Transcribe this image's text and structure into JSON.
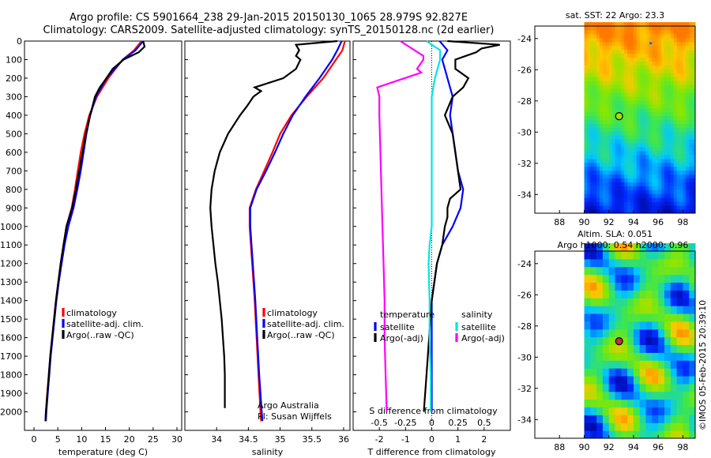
{
  "header": {
    "line1": "Argo profile: CS 5901664_238 29-Jan-2015 20150130_1065 28.979S 92.827E",
    "line2": "Climatology: CARS2009. Satellite-adjusted climatology: synTS_20150128.nc (2d earlier)"
  },
  "credits": {
    "org": "Argo Australia",
    "pi": "PI: Susan Wijffels",
    "stamp": "©IMOS 05-Feb-2015 20:39:10"
  },
  "colors": {
    "clim": "#ff0000",
    "sat": "#0000ff",
    "argo": "#000000",
    "sal_sat": "#00e5e5",
    "sal_argo": "#ff00ff"
  },
  "chart_data": [
    {
      "type": "line",
      "id": "temperature",
      "xlabel": "temperature (deg C)",
      "ylabel": "",
      "xlim": [
        -2,
        31
      ],
      "ylim": [
        2100,
        0
      ],
      "xticks": [
        0,
        5,
        10,
        15,
        20,
        25,
        30
      ],
      "yticks": [
        0,
        100,
        200,
        300,
        400,
        500,
        600,
        700,
        800,
        900,
        1000,
        1100,
        1200,
        1300,
        1400,
        1500,
        1600,
        1700,
        1800,
        1900,
        2000
      ],
      "legend": [
        "climatology",
        "satellite-adj. clim.",
        "Argo(..raw -QC)"
      ],
      "series": [
        {
          "name": "climatology",
          "color": "#ff0000",
          "depth": [
            0,
            50,
            100,
            200,
            300,
            400,
            500,
            600,
            700,
            800,
            900,
            1000,
            1100,
            1200,
            1300,
            1400,
            1500,
            1600,
            1700,
            1800,
            1900,
            2000,
            2050
          ],
          "values": [
            22.6,
            21,
            18.6,
            15.6,
            13.2,
            11.6,
            10.6,
            9.8,
            9.2,
            8.6,
            7.9,
            6.8,
            6.2,
            5.6,
            5.1,
            4.6,
            4.2,
            3.8,
            3.4,
            3.1,
            2.8,
            2.5,
            2.4
          ]
        },
        {
          "name": "satellite-adj. clim.",
          "color": "#0000ff",
          "depth": [
            0,
            50,
            100,
            200,
            300,
            400,
            500,
            600,
            700,
            800,
            900,
            1000,
            1100,
            1200,
            1300,
            1400,
            1500,
            1600,
            1700,
            1800,
            1900,
            2000,
            2050
          ],
          "values": [
            22.9,
            21.3,
            18.7,
            15.2,
            13.0,
            11.8,
            11.0,
            10.4,
            9.8,
            9.1,
            8.3,
            7.2,
            6.4,
            5.8,
            5.2,
            4.7,
            4.3,
            3.9,
            3.5,
            3.2,
            2.9,
            2.6,
            2.5
          ]
        },
        {
          "name": "Argo(..raw -QC)",
          "color": "#000000",
          "depth": [
            0,
            30,
            60,
            100,
            150,
            200,
            250,
            300,
            400,
            500,
            600,
            700,
            800,
            900,
            1000,
            1100,
            1200,
            1300,
            1400,
            1500,
            1600,
            1700,
            1800,
            1900,
            2000,
            2050
          ],
          "values": [
            22.9,
            23.2,
            22.0,
            18.8,
            16.5,
            15.2,
            13.8,
            12.8,
            11.8,
            10.9,
            10.2,
            9.5,
            8.8,
            8.0,
            6.8,
            6.2,
            5.6,
            5.1,
            4.6,
            4.2,
            3.8,
            3.4,
            3.1,
            2.8,
            2.5,
            2.4
          ]
        }
      ]
    },
    {
      "type": "line",
      "id": "salinity",
      "xlabel": "salinity",
      "xlim": [
        33.5,
        36.1
      ],
      "ylim": [
        2100,
        0
      ],
      "xticks": [
        34,
        34.5,
        35,
        35.5,
        36
      ],
      "legend": [
        "climatology",
        "satellite-adj. clim.",
        "Argo(..raw -QC)"
      ],
      "series": [
        {
          "name": "climatology",
          "color": "#ff0000",
          "depth": [
            0,
            50,
            100,
            200,
            300,
            400,
            500,
            600,
            700,
            800,
            900,
            1000,
            1200,
            1400,
            1600,
            1800,
            2000,
            2050
          ],
          "values": [
            36.02,
            35.98,
            35.88,
            35.68,
            35.42,
            35.18,
            35.0,
            34.88,
            34.75,
            34.62,
            34.52,
            34.52,
            34.56,
            34.6,
            34.63,
            34.66,
            34.69,
            34.7
          ]
        },
        {
          "name": "satellite-adj. clim.",
          "color": "#0000ff",
          "depth": [
            0,
            50,
            100,
            200,
            300,
            400,
            500,
            600,
            700,
            800,
            900,
            1000,
            1200,
            1400,
            1600,
            1800,
            2000,
            2050
          ],
          "values": [
            35.97,
            35.9,
            35.82,
            35.62,
            35.4,
            35.2,
            35.05,
            34.92,
            34.78,
            34.63,
            34.53,
            34.53,
            34.57,
            34.61,
            34.64,
            34.67,
            34.71,
            34.72
          ]
        },
        {
          "name": "Argo(..raw -QC)",
          "color": "#000000",
          "depth": [
            0,
            20,
            50,
            80,
            100,
            150,
            200,
            250,
            270,
            300,
            350,
            400,
            500,
            600,
            700,
            800,
            900,
            1000,
            1100,
            1200,
            1300,
            1400,
            1500,
            1600,
            1700,
            1800,
            1900,
            1980
          ],
          "values": [
            35.9,
            35.25,
            35.3,
            35.25,
            35.32,
            35.25,
            35.05,
            34.6,
            34.7,
            34.58,
            34.48,
            34.37,
            34.18,
            34.05,
            33.97,
            33.92,
            33.9,
            33.92,
            33.95,
            33.98,
            34.02,
            34.05,
            34.08,
            34.1,
            34.12,
            34.13,
            34.13,
            34.13
          ]
        }
      ]
    },
    {
      "type": "line",
      "id": "differences",
      "xlabel": "T difference from climatology",
      "toplabel": "S difference from climatology",
      "xlim": [
        -3.0,
        3.0
      ],
      "ylim": [
        2100,
        0
      ],
      "xticks": [
        -2,
        -1,
        0,
        1,
        2
      ],
      "sticks": [
        "-0.5",
        "-0.25",
        "0",
        "0.25",
        "0.5"
      ],
      "legend_titles": [
        "temperature",
        "salinity"
      ],
      "legend": [
        "satellite",
        "Argo(-adj)",
        "satellite",
        "Argo(-adj)"
      ],
      "series": [
        {
          "name": "T satellite",
          "color": "#0000ff",
          "depth": [
            0,
            50,
            100,
            150,
            200,
            300,
            400,
            500,
            600,
            700,
            800,
            900,
            1000,
            1100,
            1200,
            1400,
            1600,
            1800,
            2000
          ],
          "values": [
            0.3,
            0.6,
            0.4,
            0.5,
            0.6,
            0.8,
            0.7,
            0.8,
            0.9,
            1.0,
            1.2,
            1.1,
            0.8,
            0.4,
            0.2,
            0.0,
            0.0,
            0.0,
            0.0
          ]
        },
        {
          "name": "T Argo(-adj)",
          "color": "#000000",
          "depth": [
            0,
            20,
            40,
            60,
            80,
            100,
            150,
            200,
            250,
            300,
            400,
            500,
            600,
            700,
            800,
            850,
            900,
            950,
            1000,
            1100,
            1200,
            1400,
            1600,
            1800,
            2000
          ],
          "values": [
            0.6,
            2.6,
            1.9,
            1.7,
            1.3,
            0.9,
            0.9,
            1.4,
            1.2,
            0.8,
            0.5,
            0.8,
            0.9,
            1.0,
            1.1,
            0.7,
            0.6,
            0.6,
            0.5,
            0.4,
            0.2,
            0.0,
            -0.1,
            -0.2,
            -0.3
          ]
        },
        {
          "name": "S satellite",
          "color": "#00e5e5",
          "depth": [
            0,
            50,
            100,
            200,
            300,
            500,
            700,
            900,
            1000,
            1100,
            1200,
            1400,
            1600,
            1800,
            2000
          ],
          "values": [
            -0.05,
            0.08,
            0.08,
            0.03,
            0.0,
            0.0,
            0.0,
            0.0,
            0.0,
            -0.02,
            -0.03,
            -0.02,
            -0.02,
            -0.01,
            -0.01
          ]
        },
        {
          "name": "S Argo(-adj)",
          "color": "#ff00ff",
          "depth": [
            0,
            80,
            100,
            150,
            170,
            250,
            300,
            400,
            600,
            800,
            1000,
            1200,
            1400,
            1600,
            1800,
            2000
          ],
          "values": [
            -0.3,
            -0.08,
            -0.08,
            -0.14,
            -0.1,
            -0.52,
            -0.5,
            -0.5,
            -0.49,
            -0.48,
            -0.47,
            -0.46,
            -0.45,
            -0.45,
            -0.44,
            -0.43
          ]
        }
      ]
    },
    {
      "type": "heatmap",
      "id": "sst_map",
      "title": "sat. SST: 22  Argo: 23.3",
      "xlim": [
        86,
        99
      ],
      "ylim": [
        -35.2,
        -23.2
      ],
      "xticks": [
        88,
        90,
        92,
        94,
        96,
        98
      ],
      "yticks": [
        -24,
        -26,
        -28,
        -30,
        -32,
        -34
      ],
      "data_start_lon": 90,
      "float_marker": {
        "lon": 92.83,
        "lat": -28.98
      },
      "point_marker": {
        "lon": 95.4,
        "lat": -24.3
      }
    },
    {
      "type": "heatmap",
      "id": "sla_map",
      "title": "Altim. SLA: 0.051",
      "subtitle": "Argo h1000: 0.54 h2000: 0.96",
      "xlim": [
        86,
        99
      ],
      "ylim": [
        -35.2,
        -23.2
      ],
      "xticks": [
        88,
        90,
        92,
        94,
        96,
        98
      ],
      "yticks": [
        -24,
        -26,
        -28,
        -30,
        -32,
        -34
      ],
      "data_start_lon": 90,
      "float_marker": {
        "lon": 92.83,
        "lat": -28.98
      }
    }
  ]
}
